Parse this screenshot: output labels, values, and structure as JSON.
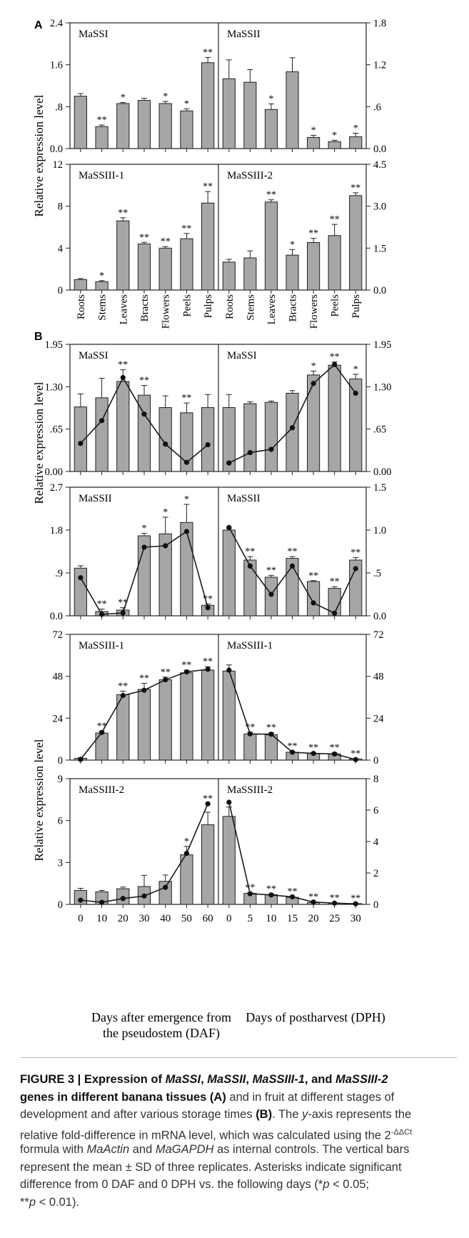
{
  "panel_letters": [
    "A",
    "B"
  ],
  "ylabel": "Relative expression level",
  "xlabel_left": [
    "Days after emergence from",
    "the pseudostem (DAF)"
  ],
  "xlabel_right": "Days of postharvest (DPH)",
  "caption": {
    "lines": [
      [
        {
          "t": "FIGURE 3 | Expression of ",
          "b": true
        },
        {
          "t": "MaSSI",
          "b": true,
          "i": true
        },
        {
          "t": ", ",
          "b": true
        },
        {
          "t": "MaSSII",
          "b": true,
          "i": true
        },
        {
          "t": ", ",
          "b": true
        },
        {
          "t": "MaSSIII-1",
          "b": true,
          "i": true
        },
        {
          "t": ", and ",
          "b": true
        },
        {
          "t": "MaSSIII-2",
          "b": true,
          "i": true
        }
      ],
      [
        {
          "t": "genes in different banana tissues (A)",
          "b": true
        },
        {
          "t": " and in fruit at different stages of"
        }
      ],
      [
        {
          "t": "development and after various storage times "
        },
        {
          "t": "(B)",
          "b": true
        },
        {
          "t": ". The "
        },
        {
          "t": "y",
          "i": true
        },
        {
          "t": "-axis represents the"
        }
      ],
      [
        {
          "t": "relative fold-difference in mRNA level, which was calculated using the 2"
        },
        {
          "t": "-ΔΔCt",
          "sup": true
        }
      ],
      [
        {
          "t": "formula with "
        },
        {
          "t": "MaActin",
          "i": true
        },
        {
          "t": " and "
        },
        {
          "t": "MaGAPDH",
          "i": true
        },
        {
          "t": " as internal controls. The vertical bars"
        }
      ],
      [
        {
          "t": "represent the mean ± SD of three replicates. Asterisks indicate significant"
        }
      ],
      [
        {
          "t": "difference from 0 DAF and 0 DPH vs. the following days (*"
        },
        {
          "t": "p",
          "i": true
        },
        {
          "t": " < 0.05;"
        }
      ],
      [
        {
          "t": "**"
        },
        {
          "t": "p",
          "i": true
        },
        {
          "t": " < 0.01)."
        }
      ]
    ]
  },
  "chart_data": [
    {
      "panel": "A",
      "title": "MaSSI",
      "type": "bar",
      "categories": [
        "Roots",
        "Stems",
        "Leaves",
        "Bracts",
        "Flowers",
        "Peels",
        "Pulps"
      ],
      "values": [
        1.0,
        0.42,
        0.86,
        0.92,
        0.86,
        0.72,
        1.64
      ],
      "errors": [
        0.05,
        0.03,
        0.02,
        0.04,
        0.04,
        0.04,
        0.1
      ],
      "sig": [
        "",
        "**",
        "*",
        "",
        "*",
        "*",
        "**"
      ],
      "ylim": [
        0,
        2.4
      ],
      "yticks": [
        "0.0",
        ".8",
        "1.6",
        "2.4"
      ]
    },
    {
      "panel": "A",
      "title": "MaSSII",
      "type": "bar",
      "categories": [
        "Roots",
        "Stems",
        "Leaves",
        "Bracts",
        "Flowers",
        "Peels",
        "Pulps"
      ],
      "values": [
        1.0,
        0.95,
        0.56,
        1.1,
        0.16,
        0.1,
        0.17
      ],
      "errors": [
        0.27,
        0.18,
        0.08,
        0.2,
        0.03,
        0.02,
        0.05
      ],
      "sig": [
        "",
        "",
        "*",
        "",
        "*",
        "*",
        "*"
      ],
      "ylim": [
        0,
        1.8
      ],
      "yticks": [
        "0.0",
        ".6",
        "1.2",
        "1.8"
      ]
    },
    {
      "panel": "A",
      "title": "MaSSIII-1",
      "type": "bar",
      "categories": [
        "Roots",
        "Stems",
        "Leaves",
        "Bracts",
        "Flowers",
        "Peels",
        "Pulps"
      ],
      "values": [
        1.0,
        0.8,
        6.6,
        4.4,
        4.0,
        4.9,
        8.3
      ],
      "errors": [
        0.1,
        0.1,
        0.3,
        0.15,
        0.15,
        0.5,
        1.1
      ],
      "sig": [
        "",
        "*",
        "**",
        "**",
        "**",
        "**",
        "**"
      ],
      "ylim": [
        0,
        12
      ],
      "yticks": [
        "0",
        "4",
        "8",
        "12"
      ]
    },
    {
      "panel": "A",
      "title": "MaSSIII-2",
      "type": "bar",
      "categories": [
        "Roots",
        "Stems",
        "Leaves",
        "Bracts",
        "Flowers",
        "Peels",
        "Pulps"
      ],
      "values": [
        1.0,
        1.15,
        3.15,
        1.25,
        1.7,
        1.95,
        3.38
      ],
      "errors": [
        0.1,
        0.25,
        0.08,
        0.2,
        0.15,
        0.4,
        0.1
      ],
      "sig": [
        "",
        "",
        "**",
        "*",
        "**",
        "**",
        "**"
      ],
      "ylim": [
        0,
        4.5
      ],
      "yticks": [
        "0.0",
        "1.5",
        "3.0",
        "4.5"
      ]
    },
    {
      "panel": "B",
      "title": "MaSSI",
      "type": "bar+line",
      "categories": [
        "0",
        "10",
        "20",
        "30",
        "40",
        "50",
        "60"
      ],
      "values": [
        0.99,
        1.13,
        1.38,
        1.17,
        0.98,
        0.9,
        0.98
      ],
      "errors": [
        0.2,
        0.3,
        0.18,
        0.15,
        0.18,
        0.15,
        0.2
      ],
      "line": [
        0.43,
        0.78,
        1.44,
        0.88,
        0.42,
        0.14,
        0.41
      ],
      "sig": [
        "",
        "",
        "**",
        "**",
        "",
        "**",
        ""
      ],
      "ylim": [
        0,
        1.95
      ],
      "yticks": [
        "0.00",
        ".65",
        "1.30",
        "1.95"
      ]
    },
    {
      "panel": "B",
      "title": "MaSSI",
      "type": "bar+line",
      "categories": [
        "0",
        "5",
        "10",
        "15",
        "20",
        "25",
        "30"
      ],
      "values": [
        0.98,
        1.04,
        1.06,
        1.2,
        1.48,
        1.63,
        1.42
      ],
      "errors": [
        0.2,
        0.03,
        0.02,
        0.04,
        0.06,
        0.05,
        0.07
      ],
      "line": [
        0.13,
        0.29,
        0.34,
        0.67,
        1.35,
        1.64,
        1.2
      ],
      "sig": [
        "",
        "",
        "",
        "",
        "*",
        "**",
        "*"
      ],
      "ylim": [
        0,
        1.95
      ],
      "yticks": [
        "0.00",
        ".65",
        "1.30",
        "1.95"
      ]
    },
    {
      "panel": "B",
      "title": "MaSSII",
      "type": "bar+line",
      "categories": [
        "0",
        "10",
        "20",
        "30",
        "40",
        "50",
        "60"
      ],
      "values": [
        1.0,
        0.09,
        0.12,
        1.68,
        1.72,
        1.96,
        0.22
      ],
      "errors": [
        0.05,
        0.05,
        0.05,
        0.05,
        0.35,
        0.38,
        0.03
      ],
      "line": [
        0.8,
        0.03,
        0.06,
        1.44,
        1.47,
        1.77,
        0.17
      ],
      "sig": [
        "",
        "**",
        "**",
        "*",
        "*",
        "*",
        "**"
      ],
      "ylim": [
        0,
        2.7
      ],
      "yticks": [
        "0.0",
        ".9",
        "1.8",
        "2.7"
      ]
    },
    {
      "panel": "B",
      "title": "MaSSII",
      "type": "bar+line",
      "categories": [
        "0",
        "5",
        "10",
        "15",
        "20",
        "25",
        "30"
      ],
      "values": [
        1.0,
        0.65,
        0.45,
        0.67,
        0.4,
        0.32,
        0.65
      ],
      "errors": [
        0.02,
        0.04,
        0.02,
        0.02,
        0.01,
        0.02,
        0.03
      ],
      "line": [
        1.03,
        0.58,
        0.25,
        0.58,
        0.15,
        0.03,
        0.55
      ],
      "sig": [
        "",
        "**",
        "**",
        "**",
        "**",
        "**",
        "**"
      ],
      "ylim": [
        0,
        1.5
      ],
      "yticks": [
        "0.0",
        ".5",
        "1.0",
        "1.5"
      ]
    },
    {
      "panel": "B",
      "title": "MaSSIII-1",
      "type": "bar+line",
      "categories": [
        "0",
        "10",
        "20",
        "30",
        "40",
        "50",
        "60"
      ],
      "values": [
        1.0,
        15.5,
        37.5,
        40.5,
        46.0,
        50.0,
        51.5
      ],
      "errors": [
        0.3,
        1.0,
        2.0,
        3.5,
        1.5,
        1.5,
        2.0
      ],
      "line": [
        0.4,
        15.8,
        37.0,
        40.0,
        46.0,
        50.5,
        52.0
      ],
      "sig": [
        "",
        "**",
        "**",
        "**",
        "**",
        "**",
        "**"
      ],
      "ylim": [
        0,
        72
      ],
      "yticks": [
        "0",
        "24",
        "48",
        "72"
      ]
    },
    {
      "panel": "B",
      "title": "MaSSIII-1",
      "type": "bar+line",
      "categories": [
        "0",
        "5",
        "10",
        "15",
        "20",
        "25",
        "30"
      ],
      "values": [
        51.0,
        15.0,
        14.5,
        4.5,
        3.8,
        3.5,
        0.6
      ],
      "errors": [
        3.5,
        1.0,
        1.2,
        0.6,
        0.5,
        0.7,
        0.2
      ],
      "line": [
        51.5,
        15.0,
        14.8,
        4.5,
        3.8,
        3.5,
        0.3
      ],
      "sig": [
        "",
        "**",
        "**",
        "**",
        "**",
        "**",
        "**"
      ],
      "ylim": [
        0,
        72
      ],
      "yticks": [
        "0",
        "24",
        "48",
        "72"
      ]
    },
    {
      "panel": "B",
      "title": "MaSSIII-2",
      "type": "bar+line",
      "categories": [
        "0",
        "10",
        "20",
        "30",
        "40",
        "50",
        "60"
      ],
      "values": [
        1.0,
        0.9,
        1.12,
        1.28,
        1.65,
        3.55,
        5.7
      ],
      "errors": [
        0.15,
        0.1,
        0.12,
        0.8,
        0.45,
        0.6,
        0.9
      ],
      "line": [
        0.3,
        0.15,
        0.42,
        0.6,
        1.22,
        3.65,
        7.2
      ],
      "sig": [
        "",
        "",
        "",
        "",
        "",
        "*",
        "**"
      ],
      "ylim": [
        0,
        9
      ],
      "yticks": [
        "0",
        "3",
        "6",
        "9"
      ]
    },
    {
      "panel": "B",
      "title": "MaSSIII-2",
      "type": "bar+line",
      "categories": [
        "0",
        "5",
        "10",
        "15",
        "20",
        "25",
        "30"
      ],
      "values": [
        5.6,
        0.7,
        0.62,
        0.45,
        0.12,
        0.08,
        0.05
      ],
      "errors": [
        0.6,
        0.05,
        0.05,
        0.06,
        0.03,
        0.02,
        0.02
      ],
      "line": [
        6.5,
        0.68,
        0.6,
        0.48,
        0.15,
        0.08,
        0.04
      ],
      "sig": [
        "",
        "**",
        "**",
        "**",
        "**",
        "**",
        "**"
      ],
      "ylim": [
        0,
        8
      ],
      "yticks": [
        "0",
        "2",
        "4",
        "6",
        "8"
      ]
    }
  ]
}
